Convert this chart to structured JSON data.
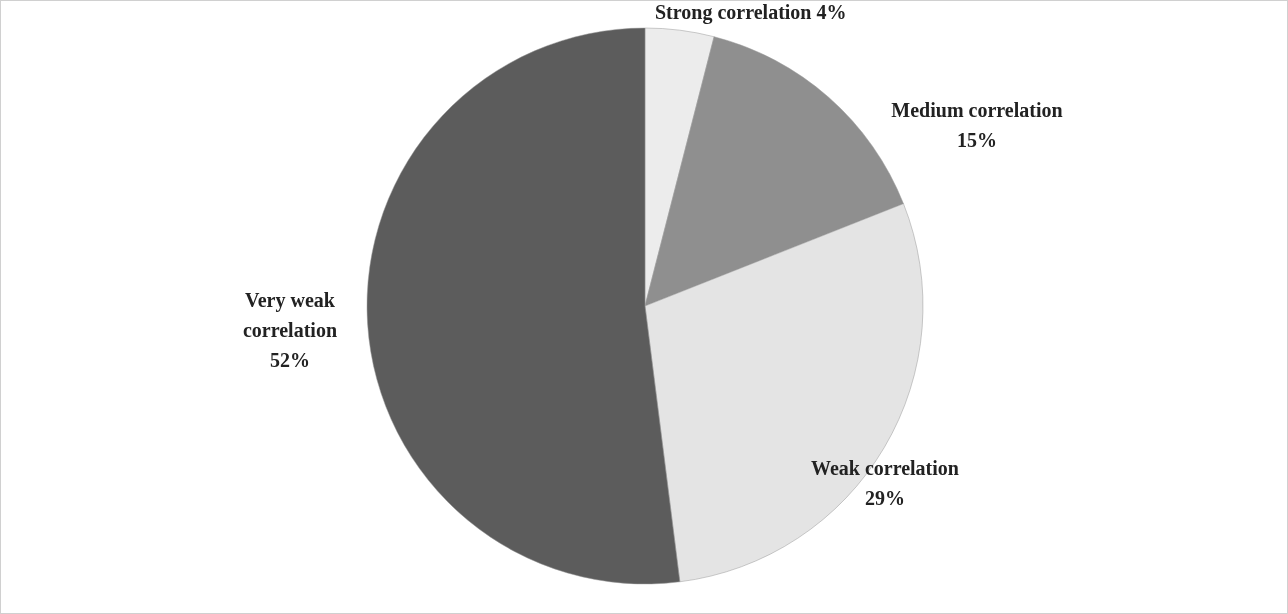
{
  "chart_data": {
    "type": "pie",
    "categories": [
      "Strong correlation",
      "Medium correlation",
      "Weak correlation",
      "Very weak correlation"
    ],
    "values": [
      4,
      15,
      29,
      52
    ],
    "value_labels": [
      "4%",
      "15%",
      "29%",
      "52%"
    ],
    "colors": [
      "#ececec",
      "#8f8f8f",
      "#e4e4e4",
      "#5c5c5c"
    ]
  }
}
